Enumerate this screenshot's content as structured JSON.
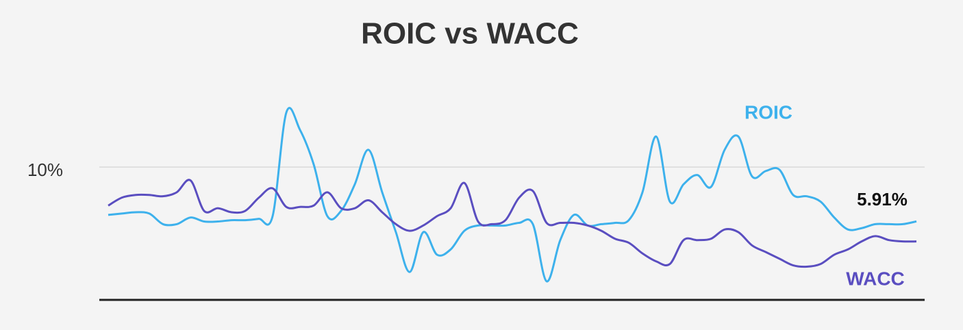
{
  "chart_data": {
    "type": "line",
    "title": "ROIC vs WACC",
    "categories": [
      null,
      null,
      null,
      null,
      null,
      null,
      null,
      null,
      null,
      null,
      null,
      null,
      null,
      null,
      null,
      null,
      null,
      null,
      null,
      null,
      null,
      null,
      null,
      null,
      null,
      null,
      null,
      null,
      null,
      null,
      null,
      null,
      null,
      null,
      null,
      null,
      null,
      null,
      null,
      null,
      null,
      null,
      null,
      null,
      null,
      null,
      null,
      null,
      null,
      null,
      null,
      null,
      null,
      null,
      null,
      null,
      null,
      null,
      null,
      null
    ],
    "series": [
      {
        "name": "ROIC",
        "color": "#3db1ec",
        "values": [
          6.4,
          6.5,
          6.6,
          6.5,
          5.7,
          5.7,
          6.2,
          5.9,
          5.9,
          6.0,
          6.0,
          6.1,
          6.3,
          14.1,
          12.8,
          10.2,
          6.3,
          6.7,
          8.7,
          11.3,
          8.1,
          5.1,
          2.1,
          5.1,
          3.4,
          3.8,
          5.2,
          5.6,
          5.6,
          5.6,
          5.8,
          5.7,
          1.4,
          4.5,
          6.4,
          5.6,
          5.7,
          5.8,
          6.0,
          8.1,
          12.3,
          7.4,
          8.7,
          9.4,
          8.5,
          11.3,
          12.3,
          9.3,
          9.7,
          9.8,
          7.9,
          7.8,
          7.4,
          6.2,
          5.3,
          5.4,
          5.7,
          5.7,
          5.7,
          5.91
        ],
        "value_labels": [
          null,
          null,
          null,
          null,
          null,
          null,
          null,
          null,
          null,
          null,
          null,
          null,
          null,
          null,
          null,
          null,
          null,
          null,
          null,
          null,
          null,
          null,
          null,
          null,
          null,
          null,
          null,
          null,
          null,
          null,
          null,
          null,
          null,
          null,
          null,
          null,
          null,
          null,
          null,
          null,
          null,
          null,
          null,
          null,
          null,
          null,
          null,
          null,
          null,
          null,
          null,
          null,
          null,
          null,
          null,
          null,
          null,
          null,
          null,
          "5.91%"
        ]
      },
      {
        "name": "WACC",
        "color": "#5a4ec0",
        "values": [
          7.1,
          7.7,
          7.9,
          7.9,
          7.8,
          8.1,
          9.0,
          6.7,
          6.9,
          6.6,
          6.7,
          7.7,
          8.4,
          7.0,
          7.0,
          7.1,
          8.1,
          6.9,
          6.9,
          7.5,
          6.6,
          5.7,
          5.2,
          5.6,
          6.3,
          6.9,
          8.8,
          5.9,
          5.7,
          6.0,
          7.7,
          8.2,
          5.8,
          5.8,
          5.8,
          5.6,
          5.2,
          4.6,
          4.3,
          3.5,
          2.9,
          2.7,
          4.5,
          4.5,
          4.6,
          5.3,
          5.1,
          4.1,
          3.6,
          3.1,
          2.6,
          2.5,
          2.7,
          3.4,
          3.8,
          4.4,
          4.8,
          4.5,
          4.4,
          4.4
        ]
      }
    ],
    "ylim": [
      0,
      16
    ],
    "yticks": [
      {
        "value": 10,
        "label": "10%"
      }
    ],
    "grid": true
  }
}
